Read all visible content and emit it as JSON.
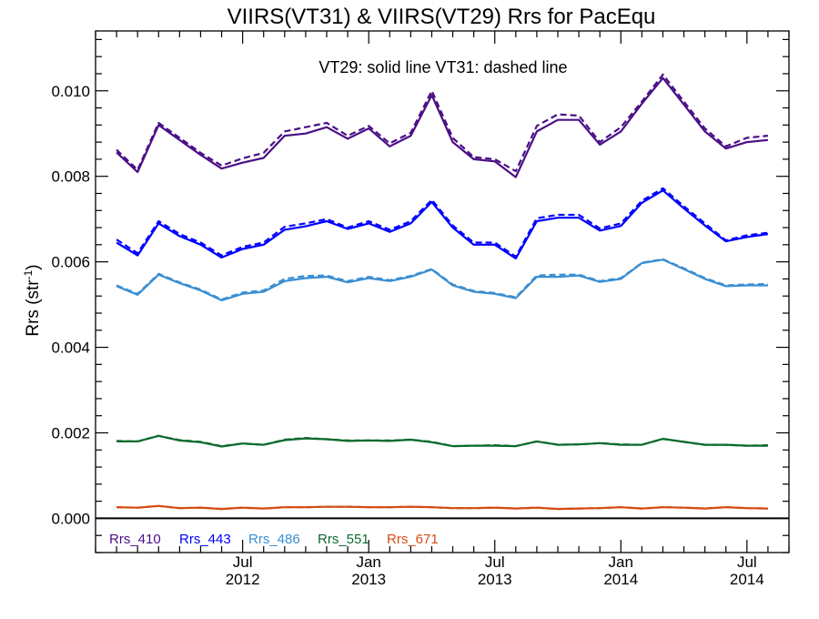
{
  "chart_data": {
    "type": "line",
    "title": "VIIRS(VT31) & VIIRS(VT29)  Rrs for PacEqu",
    "ylabel": "Rrs (str",
    "ylabel_sup": "-1",
    "ylabel_close": ")",
    "annotation": "VT29: solid line   VT31: dashed line",
    "xlim": [
      "2011-12",
      "2014-09"
    ],
    "ylim": [
      -0.0008,
      0.0114
    ],
    "y_ticks": [
      "0.000",
      "0.002",
      "0.004",
      "0.006",
      "0.008",
      "0.010"
    ],
    "y_tick_values": [
      0.0,
      0.002,
      0.004,
      0.006,
      0.008,
      0.01
    ],
    "x_ticks": [
      {
        "month": "Jul",
        "year": "2012",
        "date": "2012-07"
      },
      {
        "month": "Jan",
        "year": "2013",
        "date": "2013-01"
      },
      {
        "month": "Jul",
        "year": "2013",
        "date": "2013-07"
      },
      {
        "month": "Jan",
        "year": "2014",
        "date": "2014-01"
      },
      {
        "month": "Jul",
        "year": "2014",
        "date": "2014-07"
      }
    ],
    "zero_line": 0.0,
    "x": [
      "2012-01",
      "2012-02",
      "2012-03",
      "2012-04",
      "2012-05",
      "2012-06",
      "2012-07",
      "2012-08",
      "2012-09",
      "2012-10",
      "2012-11",
      "2012-12",
      "2013-01",
      "2013-02",
      "2013-03",
      "2013-04",
      "2013-05",
      "2013-06",
      "2013-07",
      "2013-08",
      "2013-09",
      "2013-10",
      "2013-11",
      "2013-12",
      "2014-01",
      "2014-02",
      "2014-03",
      "2014-04",
      "2014-05",
      "2014-06",
      "2014-07",
      "2014-08"
    ],
    "series": [
      {
        "name": "Rrs_410",
        "color": "#4b0f87",
        "vt29": [
          0.00856,
          0.0081,
          0.0092,
          0.00885,
          0.0085,
          0.00818,
          0.00832,
          0.00843,
          0.00895,
          0.009,
          0.00915,
          0.00888,
          0.00912,
          0.0087,
          0.00895,
          0.0099,
          0.0088,
          0.0084,
          0.00835,
          0.00798,
          0.00905,
          0.00932,
          0.00932,
          0.00874,
          0.00905,
          0.0097,
          0.0103,
          0.00968,
          0.00905,
          0.00865,
          0.0088,
          0.00885
        ],
        "vt31": [
          0.00862,
          0.00815,
          0.00925,
          0.0089,
          0.00855,
          0.00825,
          0.00842,
          0.00855,
          0.00905,
          0.00915,
          0.00925,
          0.00895,
          0.00918,
          0.00877,
          0.00902,
          0.01,
          0.0089,
          0.00845,
          0.0084,
          0.00812,
          0.00918,
          0.00945,
          0.00942,
          0.0088,
          0.00915,
          0.00975,
          0.01038,
          0.00975,
          0.00912,
          0.0087,
          0.0089,
          0.00895
        ]
      },
      {
        "name": "Rrs_443",
        "color": "#0000ff",
        "vt29": [
          0.00645,
          0.00615,
          0.0069,
          0.0066,
          0.0064,
          0.0061,
          0.0063,
          0.0064,
          0.00675,
          0.00683,
          0.00695,
          0.00677,
          0.0069,
          0.0067,
          0.0069,
          0.0074,
          0.0068,
          0.0064,
          0.0064,
          0.00608,
          0.00695,
          0.00703,
          0.00703,
          0.00673,
          0.00684,
          0.00738,
          0.00767,
          0.00725,
          0.00685,
          0.00648,
          0.00658,
          0.00665
        ],
        "vt31": [
          0.00652,
          0.0062,
          0.00695,
          0.00665,
          0.00645,
          0.00615,
          0.00635,
          0.00645,
          0.00682,
          0.0069,
          0.007,
          0.0068,
          0.00695,
          0.00675,
          0.00695,
          0.00745,
          0.00685,
          0.00645,
          0.00645,
          0.00612,
          0.00702,
          0.0071,
          0.0071,
          0.00678,
          0.0069,
          0.00743,
          0.00772,
          0.0073,
          0.0069,
          0.0065,
          0.00662,
          0.00668
        ]
      },
      {
        "name": "Rrs_486",
        "color": "#3a8ed2",
        "vt29": [
          0.00543,
          0.00523,
          0.0057,
          0.0055,
          0.00533,
          0.0051,
          0.00525,
          0.0053,
          0.00555,
          0.00562,
          0.00565,
          0.00552,
          0.00562,
          0.00555,
          0.00565,
          0.00582,
          0.00545,
          0.0053,
          0.00525,
          0.00515,
          0.00565,
          0.00565,
          0.00568,
          0.00553,
          0.0056,
          0.00597,
          0.00605,
          0.00583,
          0.0056,
          0.00543,
          0.00545,
          0.00545
        ],
        "vt31": [
          0.00545,
          0.00525,
          0.00572,
          0.00552,
          0.00535,
          0.00512,
          0.00528,
          0.00533,
          0.0056,
          0.00567,
          0.00568,
          0.00555,
          0.00565,
          0.00557,
          0.00567,
          0.00583,
          0.00547,
          0.00532,
          0.00527,
          0.00517,
          0.00568,
          0.0057,
          0.0057,
          0.00555,
          0.00562,
          0.00598,
          0.00606,
          0.00585,
          0.00562,
          0.00545,
          0.00547,
          0.00548
        ]
      },
      {
        "name": "Rrs_551",
        "color": "#0c6a2e",
        "vt29": [
          0.0018,
          0.0018,
          0.00193,
          0.00182,
          0.00178,
          0.00168,
          0.00175,
          0.00172,
          0.00183,
          0.00187,
          0.00185,
          0.00181,
          0.00182,
          0.00181,
          0.00184,
          0.00178,
          0.00169,
          0.0017,
          0.0017,
          0.00169,
          0.0018,
          0.00172,
          0.00173,
          0.00176,
          0.00172,
          0.00172,
          0.00186,
          0.00179,
          0.00172,
          0.00172,
          0.0017,
          0.0017
        ],
        "vt31": [
          0.00181,
          0.0018,
          0.00193,
          0.00183,
          0.00179,
          0.00169,
          0.00175,
          0.00172,
          0.00184,
          0.00188,
          0.00185,
          0.00182,
          0.00182,
          0.00182,
          0.00184,
          0.00179,
          0.00169,
          0.0017,
          0.00171,
          0.00169,
          0.0018,
          0.00172,
          0.00173,
          0.00176,
          0.00173,
          0.00172,
          0.00186,
          0.00179,
          0.00172,
          0.00172,
          0.0017,
          0.00171
        ]
      },
      {
        "name": "Rrs_671",
        "color": "#d44c14",
        "vt29": [
          0.00026,
          0.00025,
          0.00029,
          0.00024,
          0.00025,
          0.00022,
          0.00025,
          0.00023,
          0.00026,
          0.00026,
          0.00027,
          0.00027,
          0.00026,
          0.00026,
          0.00027,
          0.00026,
          0.00024,
          0.00024,
          0.00025,
          0.00023,
          0.00025,
          0.00022,
          0.00023,
          0.00024,
          0.00026,
          0.00023,
          0.00026,
          0.00025,
          0.00023,
          0.00026,
          0.00024,
          0.00023
        ],
        "vt31": [
          0.00026,
          0.00025,
          0.00029,
          0.00024,
          0.00025,
          0.00022,
          0.00025,
          0.00023,
          0.00026,
          0.00026,
          0.00027,
          0.00027,
          0.00026,
          0.00026,
          0.00027,
          0.00026,
          0.00024,
          0.00024,
          0.00025,
          0.00023,
          0.00025,
          0.00022,
          0.00023,
          0.00024,
          0.00026,
          0.00023,
          0.00026,
          0.00025,
          0.00023,
          0.00026,
          0.00024,
          0.00023
        ]
      }
    ],
    "grid": false,
    "legend": "bottom-left"
  }
}
